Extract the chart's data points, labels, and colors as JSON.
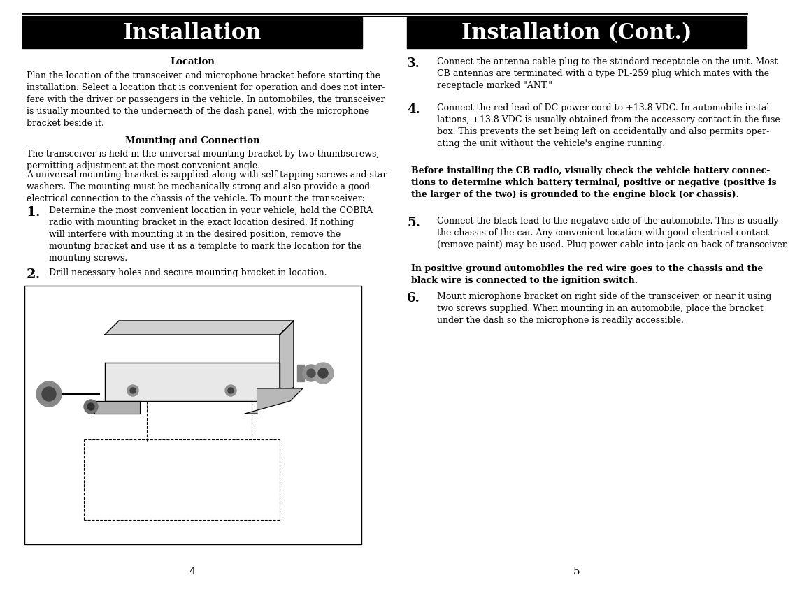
{
  "bg_color": "#ffffff",
  "left_header": "Installation",
  "right_header": "Installation (Cont.)",
  "header_bg": "#000000",
  "header_text_color": "#ffffff",
  "location_heading": "Location",
  "location_text": "Plan the location of the transceiver and microphone bracket before starting the\ninstallation. Select a location that is convenient for operation and does not inter-\nfere with the driver or passengers in the vehicle. In automobiles, the transceiver\nis usually mounted to the underneath of the dash panel, with the microphone\nbracket beside it.",
  "mounting_heading": "Mounting and Connection",
  "mounting_intro1": "The transceiver is held in the universal mounting bracket by two thumbscrews,\npermitting adjustment at the most convenient angle.",
  "mounting_intro2": "A universal mounting bracket is supplied along with self tapping screws and star\nwashers. The mounting must be mechanically strong and also provide a good\nelectrical connection to the chassis of the vehicle. To mount the transceiver:",
  "item1_text": "Determine the most convenient location in your vehicle, hold the COBRA\nradio with mounting bracket in the exact location desired. If nothing\nwill interfere with mounting it in the desired position, remove the\nmounting bracket and use it as a template to mark the location for the\nmounting screws.",
  "item2_text": "Drill necessary holes and secure mounting bracket in location.",
  "right_item3_text": "Connect the antenna cable plug to the standard receptacle on the unit. Most\nCB antennas are terminated with a type PL-259 plug which mates with the\nreceptacle marked \"ANT.\"",
  "right_item4_text": "Connect the red lead of DC power cord to +13.8 VDC. In automobile instal-\nlations, +13.8 VDC is usually obtained from the accessory contact in the fuse\nbox. This prevents the set being left on accidentally and also permits oper-\nating the unit without the vehicle's engine running.",
  "right_bold1": "Before installing the CB radio, visually check the vehicle battery connec-\ntions to determine which battery terminal, positive or negative (positive is\nthe larger of the two) is grounded to the engine block (or chassis).",
  "right_item5_text": "Connect the black lead to the negative side of the automobile. This is usually\nthe chassis of the car. Any convenient location with good electrical contact\n(remove paint) may be used. Plug power cable into jack on back of transceiver.",
  "right_bold2": "In positive ground automobiles the red wire goes to the chassis and the\nblack wire is connected to the ignition switch.",
  "right_item6_text": "Mount microphone bracket on right side of the transceiver, or near it using\ntwo screws supplied. When mounting in an automobile, place the bracket\nunder the dash so the microphone is readily accessible.",
  "page_num_left": "4",
  "page_num_right": "5"
}
